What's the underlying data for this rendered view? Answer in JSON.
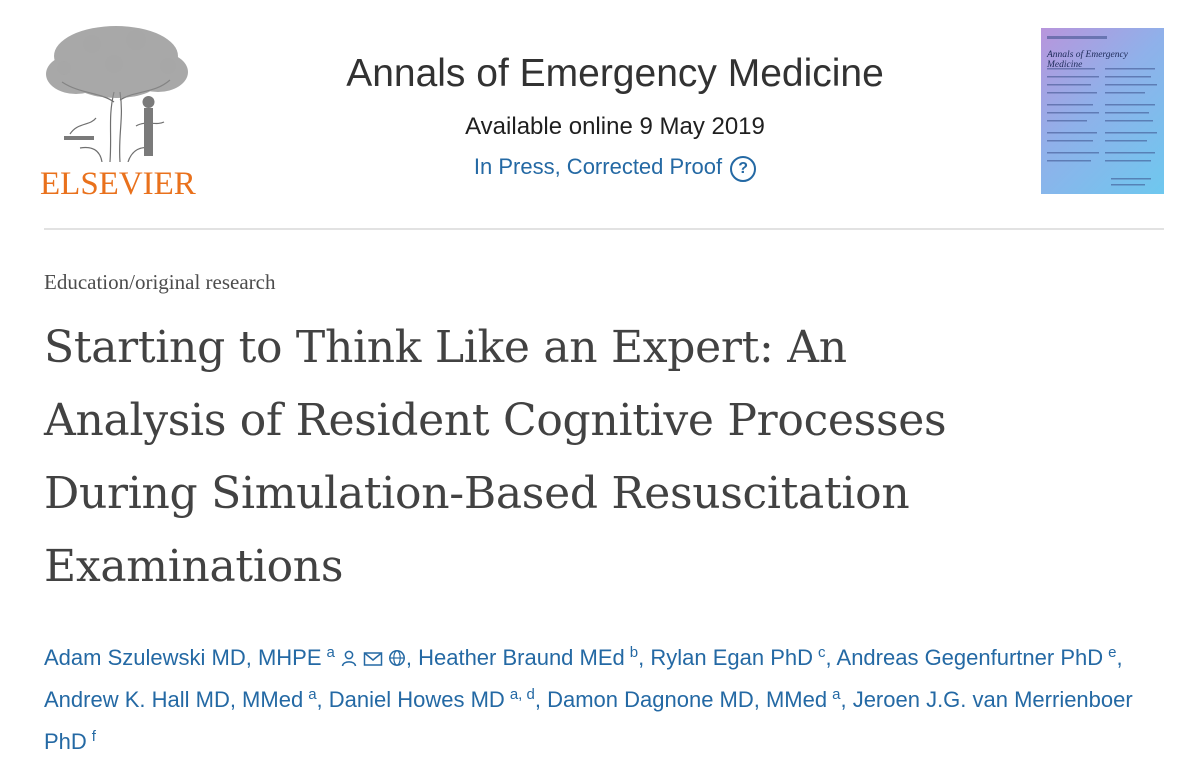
{
  "publisher": {
    "logo_text": "ELSEVIER",
    "accent_color": "#e9711c"
  },
  "journal": {
    "title": "Annals of Emergency Medicine",
    "available_online": "Available online 9 May 2019",
    "status": "In Press, Corrected Proof",
    "help_icon": "question-circle-icon",
    "cover_title": "Annals of Emergency Medicine"
  },
  "article": {
    "section": "Education/original research",
    "title_lines": [
      "Starting to Think Like an Expert: An",
      "Analysis of Resident Cognitive Processes",
      "During Simulation-Based Resuscitation",
      "Examinations"
    ]
  },
  "authors": [
    {
      "name": "Adam Szulewski MD, MHPE",
      "affil": "a",
      "icons": [
        "person-icon",
        "envelope-icon",
        "globe-icon"
      ]
    },
    {
      "name": "Heather Braund MEd",
      "affil": "b"
    },
    {
      "name": "Rylan Egan PhD",
      "affil": "c"
    },
    {
      "name": "Andreas Gegenfurtner PhD",
      "affil": "e"
    },
    {
      "name": "Andrew K. Hall MD, MMed",
      "affil": "a"
    },
    {
      "name": "Daniel Howes MD",
      "affil": "a, d"
    },
    {
      "name": "Damon Dagnone MD, MMed",
      "affil": "a"
    },
    {
      "name": "Jeroen J.G. van Merrienboer PhD",
      "affil": "f"
    }
  ],
  "link_color": "#2469a4"
}
